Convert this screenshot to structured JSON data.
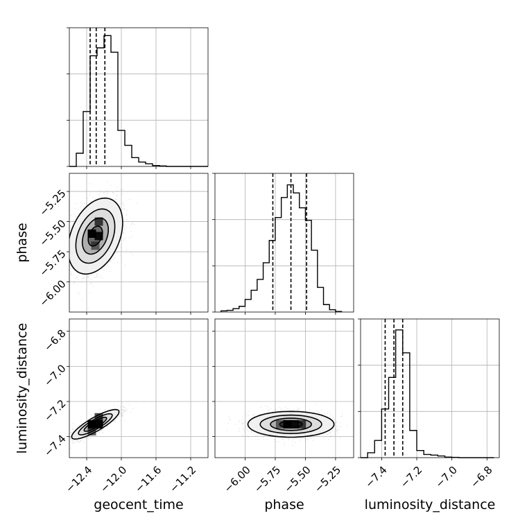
{
  "chart_data": {
    "type": "corner",
    "parameters": [
      "geocent_time",
      "phase",
      "luminosity_distance"
    ],
    "axes": {
      "geocent_time": {
        "range": [
          -12.6,
          -11.0
        ],
        "ticks": [
          -12.4,
          -12.0,
          -11.6,
          -11.2
        ],
        "tick_labels": [
          "−12.4",
          "−12.0",
          "−11.6",
          "−11.2"
        ],
        "label": "geocent_time"
      },
      "phase": {
        "range": [
          -6.25,
          -5.1
        ],
        "ticks": [
          -6.0,
          -5.75,
          -5.5,
          -5.25
        ],
        "tick_labels": [
          "−6.00",
          "−5.75",
          "−5.50",
          "−5.25"
        ],
        "label": "phase"
      },
      "luminosity_distance": {
        "range": [
          -7.52,
          -6.73
        ],
        "ticks": [
          -7.4,
          -7.2,
          -7.0,
          -6.8
        ],
        "tick_labels": [
          "−7.4",
          "−7.2",
          "−7.0",
          "−6.8"
        ],
        "label": "luminosity_distance"
      }
    },
    "histograms": {
      "geocent_time": {
        "bin_edges": [
          -12.6,
          -12.52,
          -12.44,
          -12.36,
          -12.28,
          -12.2,
          -12.12,
          -12.04,
          -11.96,
          -11.88,
          -11.8,
          -11.72,
          -11.64,
          -11.56,
          -11.48,
          -11.4,
          -11.32,
          -11.24,
          -11.16,
          -11.08,
          -11.0
        ],
        "counts": [
          0,
          30,
          125,
          252,
          270,
          298,
          260,
          82,
          48,
          20,
          10,
          6,
          2,
          1,
          0,
          0,
          0,
          0,
          0,
          0
        ],
        "quantiles": [
          -12.36,
          -12.29,
          -12.19
        ],
        "ymax": 300
      },
      "phase": {
        "bin_edges": [
          -6.2,
          -6.15,
          -6.1,
          -6.05,
          -6.0,
          -5.95,
          -5.9,
          -5.85,
          -5.8,
          -5.75,
          -5.7,
          -5.65,
          -5.6,
          -5.55,
          -5.5,
          -5.45,
          -5.4,
          -5.35,
          -5.3,
          -5.25,
          -5.2
        ],
        "counts": [
          2,
          3,
          6,
          10,
          22,
          38,
          57,
          86,
          125,
          165,
          200,
          222,
          208,
          182,
          160,
          108,
          43,
          13,
          4,
          1
        ],
        "quantiles": [
          -5.77,
          -5.62,
          -5.49
        ],
        "ymax": 230
      },
      "luminosity_distance": {
        "bin_edges": [
          -7.52,
          -7.48,
          -7.44,
          -7.4,
          -7.36,
          -7.32,
          -7.28,
          -7.24,
          -7.2,
          -7.16,
          -7.12,
          -7.08,
          -7.04,
          -7.0,
          -6.96,
          -6.92,
          -6.88,
          -6.84,
          -6.8,
          -6.76
        ],
        "counts": [
          0,
          17,
          60,
          170,
          280,
          446,
          366,
          95,
          25,
          11,
          9,
          6,
          2,
          1,
          0,
          0,
          0,
          0,
          0
        ],
        "quantiles": [
          -7.38,
          -7.33,
          -7.28
        ],
        "ymax": 460
      }
    },
    "joint": [
      {
        "x": "geocent_time",
        "y": "phase",
        "center": [
          -12.3,
          -5.62
        ],
        "sigma": [
          0.15,
          0.15
        ],
        "corr": 0.35,
        "samples": 1800,
        "density_cells": [
          [
            -12.34,
            -5.6,
            0.6
          ],
          [
            -12.34,
            -5.6,
            1.0
          ],
          [
            -12.26,
            -5.62,
            0.9
          ],
          [
            -12.26,
            -5.5,
            0.7
          ],
          [
            -12.3,
            -5.7,
            0.5
          ]
        ]
      },
      {
        "x": "geocent_time",
        "y": "luminosity_distance",
        "center": [
          -12.3,
          -7.33
        ],
        "sigma": [
          0.13,
          0.04
        ],
        "corr": 0.85,
        "samples": 1800,
        "density_cells": [
          [
            -12.34,
            -7.33,
            1.0
          ],
          [
            -12.26,
            -7.33,
            0.95
          ],
          [
            -12.26,
            -7.29,
            0.7
          ],
          [
            -12.34,
            -7.37,
            0.6
          ]
        ]
      },
      {
        "x": "phase",
        "y": "luminosity_distance",
        "center": [
          -5.62,
          -7.33
        ],
        "sigma": [
          0.17,
          0.035
        ],
        "corr": 0.0,
        "samples": 1800,
        "density_cells": [
          [
            -5.65,
            -7.33,
            1.0
          ],
          [
            -5.59,
            -7.33,
            0.9
          ],
          [
            -5.53,
            -7.33,
            0.7
          ],
          [
            -5.71,
            -7.33,
            0.5
          ]
        ]
      }
    ],
    "grid": true,
    "contour_levels": 4
  }
}
